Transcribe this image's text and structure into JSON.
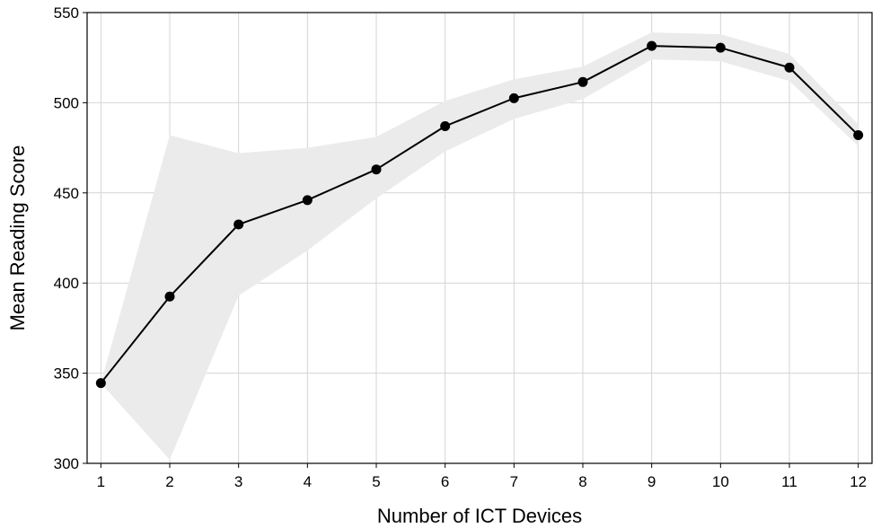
{
  "chart_data": {
    "type": "line",
    "title": "",
    "xlabel": "Number of ICT Devices",
    "ylabel": "Mean Reading Score",
    "x": [
      1,
      2,
      3,
      4,
      5,
      6,
      7,
      8,
      9,
      10,
      11,
      12
    ],
    "series": [
      {
        "values": [
          344.5,
          392.5,
          432.5,
          446,
          463,
          487,
          502.5,
          511.5,
          531.5,
          530.5,
          519.5,
          482
        ],
        "band_lower": [
          344.5,
          302,
          393,
          418,
          447,
          473,
          491,
          502,
          524,
          523,
          512,
          476
        ],
        "band_upper": [
          344.5,
          482,
          472,
          475,
          481,
          501,
          513,
          520,
          539,
          538,
          527,
          488
        ]
      }
    ],
    "xticks": [
      "1",
      "2",
      "3",
      "4",
      "5",
      "6",
      "7",
      "8",
      "9",
      "10",
      "11",
      "12"
    ],
    "yticks": [
      "300",
      "350",
      "400",
      "450",
      "500",
      "550"
    ],
    "xlim": [
      0.8,
      12.2
    ],
    "ylim": [
      300,
      550
    ],
    "grid": true,
    "colors": {
      "line": "#000000",
      "band": "#ebebeb",
      "grid": "#d4d4d4",
      "frame": "#000000"
    }
  }
}
